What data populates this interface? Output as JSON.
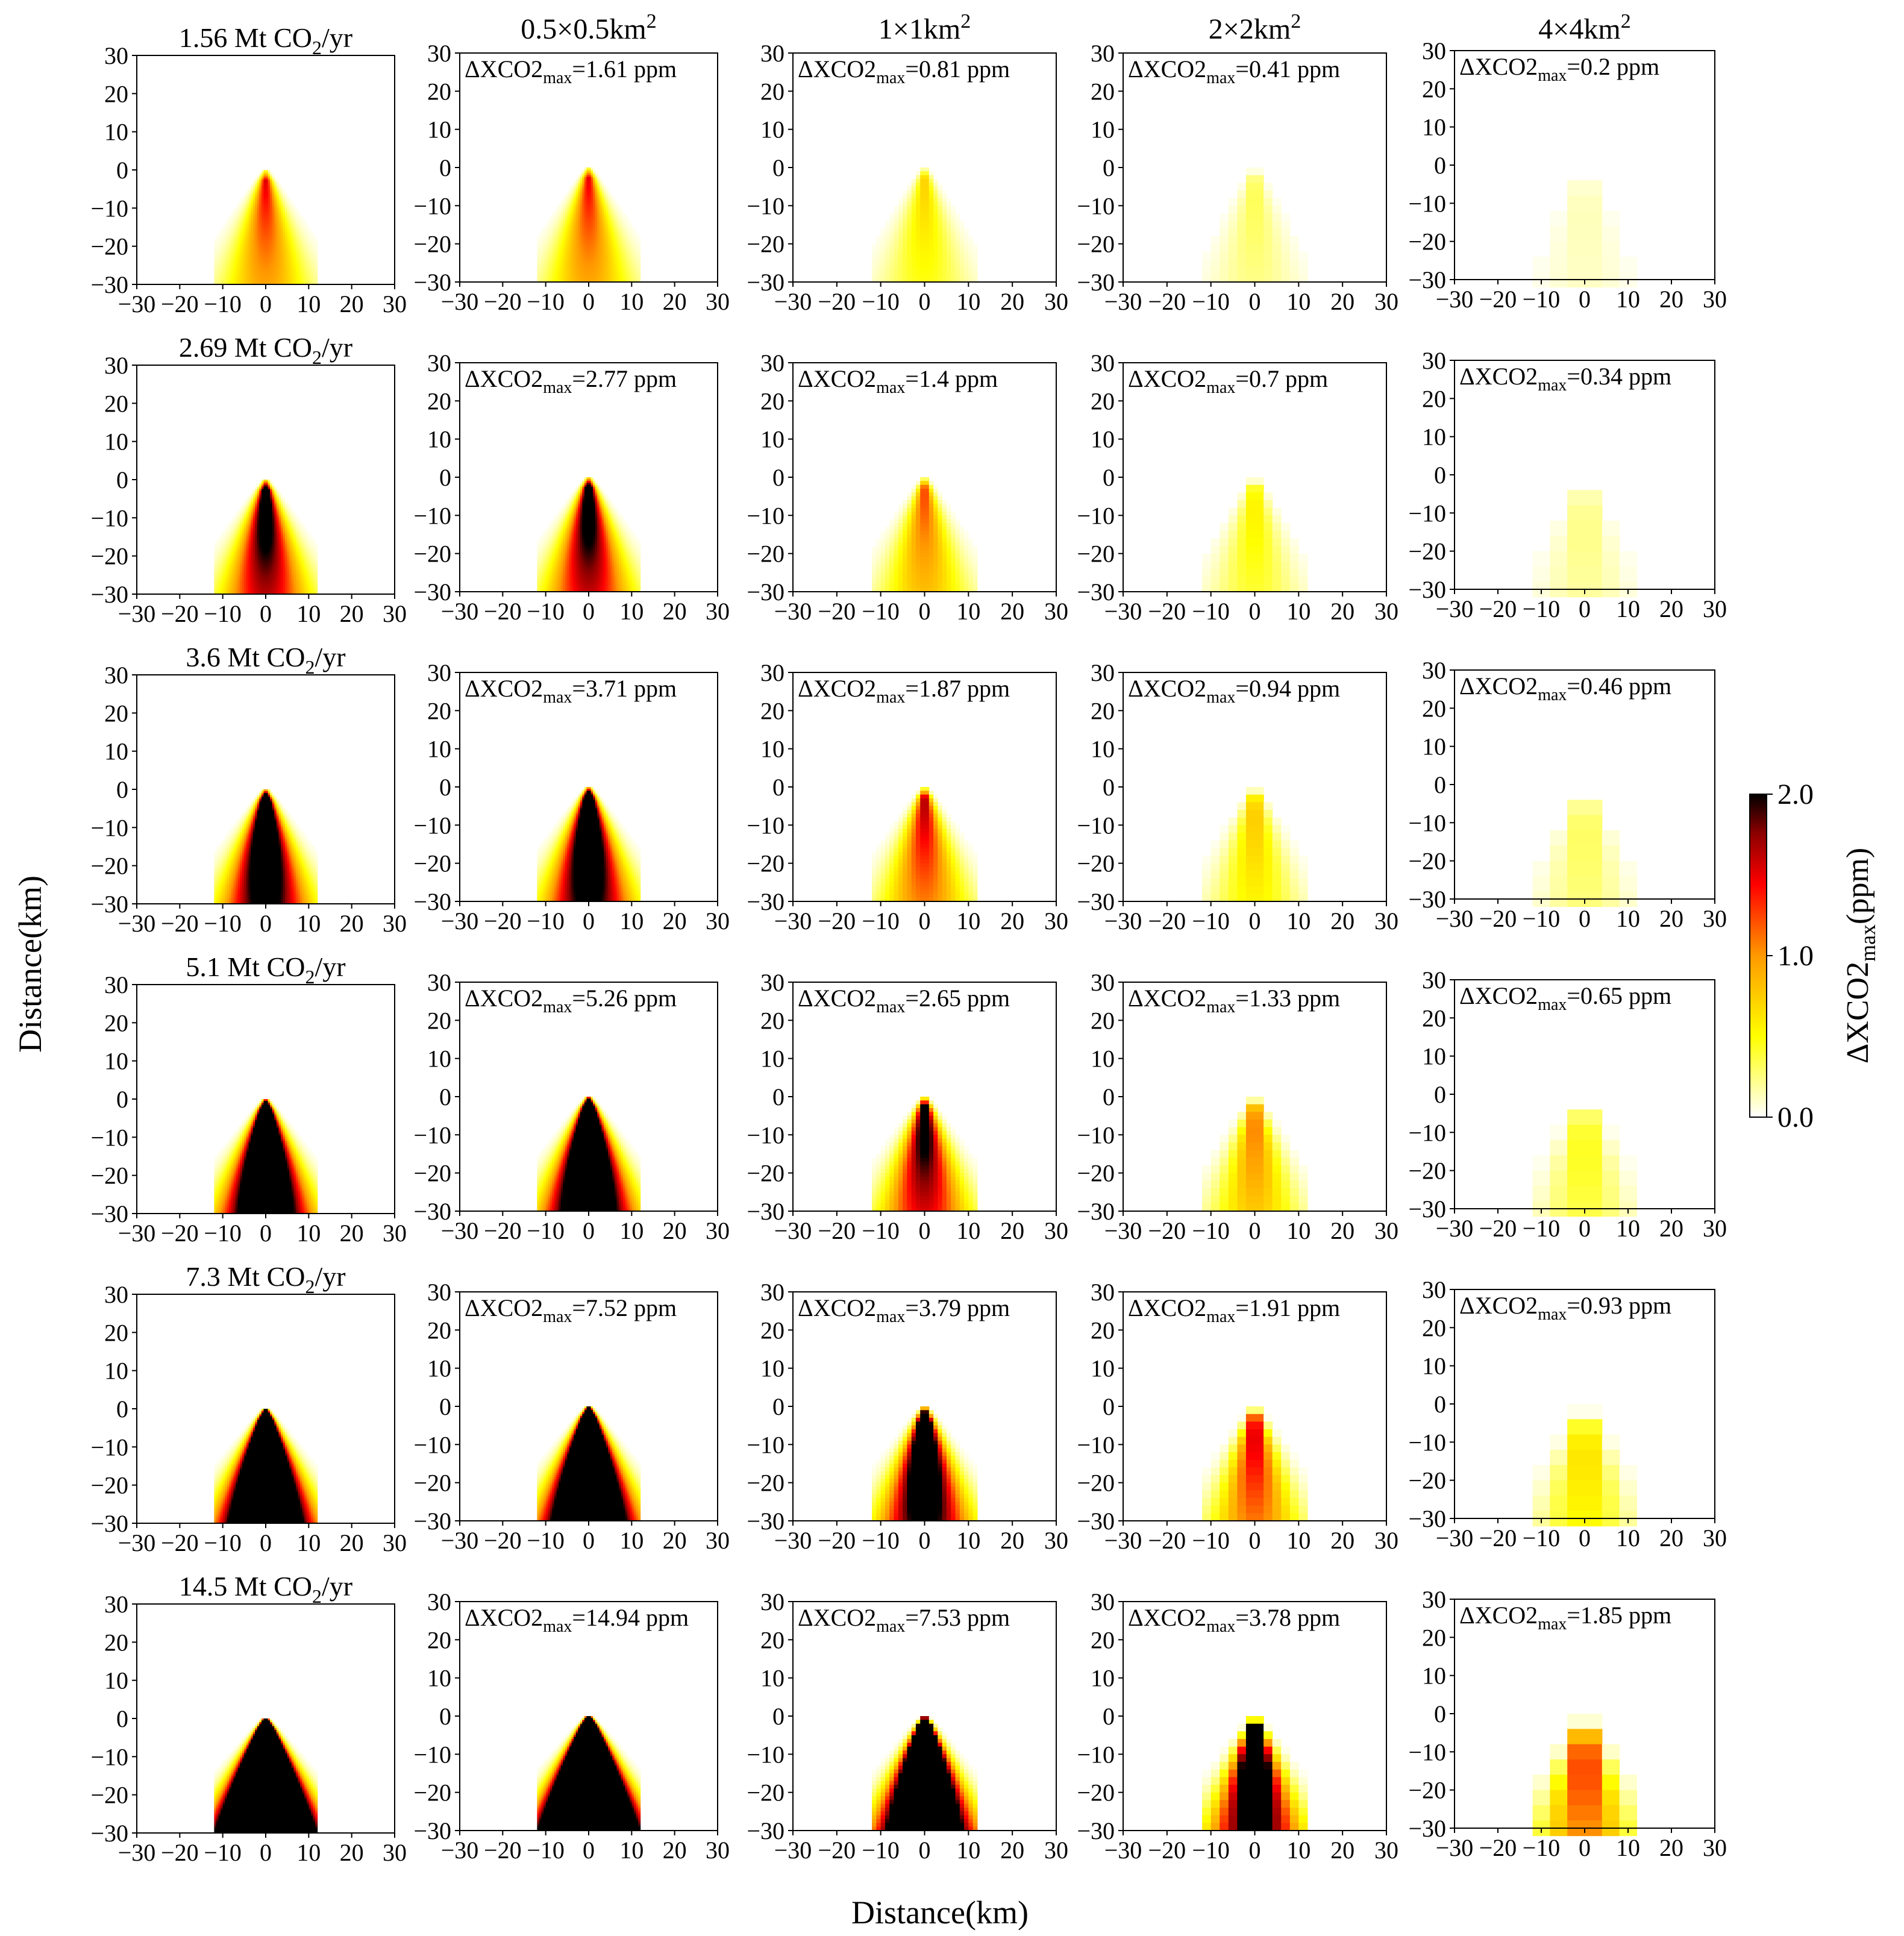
{
  "chart_data": {
    "type": "heatmap",
    "title": "",
    "xlabel": "Distance(km)",
    "ylabel": "Distance(km)",
    "xlim": [
      -30,
      30
    ],
    "ylim": [
      -30,
      30
    ],
    "xticks": [
      "−30",
      "−20",
      "−10",
      "0",
      "10",
      "20",
      "30"
    ],
    "yticks": [
      "30",
      "20",
      "10",
      "0",
      "−10",
      "−20",
      "−30"
    ],
    "annotation_prefix": "ΔXCO2",
    "annotation_subscript": "max",
    "annotation_unit": "ppm",
    "column_headers": [
      {
        "base": "0.5×0.5km",
        "sup": "2",
        "resolution_km": 0.5
      },
      {
        "base": "1×1km",
        "sup": "2",
        "resolution_km": 1
      },
      {
        "base": "2×2km",
        "sup": "2",
        "resolution_km": 2
      },
      {
        "base": "4×4km",
        "sup": "2",
        "resolution_km": 4
      }
    ],
    "rows": [
      {
        "emission_label": "1.56 Mt CO",
        "emission_sub": "2",
        "emission_suffix": "/yr",
        "emission_mt": 1.56,
        "dxco2_max": [
          "1.61",
          "0.81",
          "0.41",
          "0.2"
        ]
      },
      {
        "emission_label": "2.69 Mt CO",
        "emission_sub": "2",
        "emission_suffix": "/yr",
        "emission_mt": 2.69,
        "dxco2_max": [
          "2.77",
          "1.4",
          "0.7",
          "0.34"
        ]
      },
      {
        "emission_label": "3.6 Mt CO",
        "emission_sub": "2",
        "emission_suffix": "/yr",
        "emission_mt": 3.6,
        "dxco2_max": [
          "3.71",
          "1.87",
          "0.94",
          "0.46"
        ]
      },
      {
        "emission_label": "5.1 Mt CO",
        "emission_sub": "2",
        "emission_suffix": "/yr",
        "emission_mt": 5.1,
        "dxco2_max": [
          "5.26",
          "2.65",
          "1.33",
          "0.65"
        ]
      },
      {
        "emission_label": "7.3 Mt CO",
        "emission_sub": "2",
        "emission_suffix": "/yr",
        "emission_mt": 7.3,
        "dxco2_max": [
          "7.52",
          "3.79",
          "1.91",
          "0.93"
        ]
      },
      {
        "emission_label": "14.5 Mt CO",
        "emission_sub": "2",
        "emission_suffix": "/yr",
        "emission_mt": 14.5,
        "dxco2_max": [
          "14.94",
          "7.53",
          "3.78",
          "1.85"
        ]
      }
    ],
    "colorbar": {
      "label_prefix": "ΔXCO2",
      "label_subscript": "max",
      "label_suffix": "(ppm)",
      "range": [
        0,
        2
      ],
      "ticks": [
        "0.0",
        "1.0",
        "2.0"
      ],
      "colormap": "hot_r",
      "stops": [
        "#ffffff",
        "#ffff00",
        "#ff9900",
        "#ff0000",
        "#8b0000",
        "#000000"
      ]
    }
  }
}
